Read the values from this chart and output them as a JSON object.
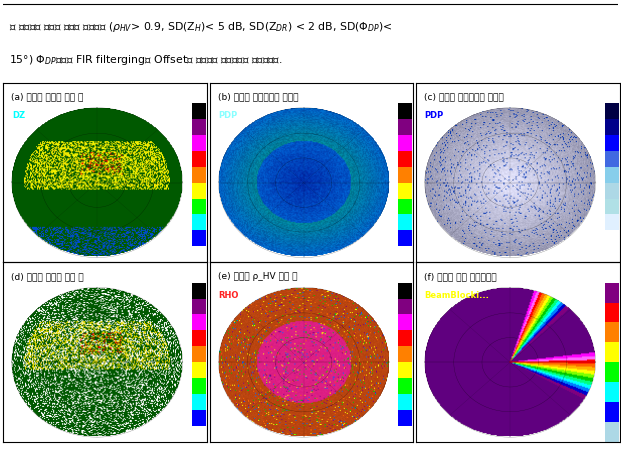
{
  "panel_labels": [
    "(a) 예봉산 반사도 보정 전",
    "(b) 예봉산 차등위상차 보정전",
    "(c) 예봉산 차등위상차 보정후",
    "(d) 예봉산 반사도 보정 후",
    "(e) 예봉산 ρ_HV 관측 예",
    "(f) 예봉산 차폐 시뮬레이션"
  ],
  "var_labels": [
    "DZ",
    "PDP",
    "PDP",
    "",
    "RHO",
    "BeamBlocki..."
  ],
  "var_label_colors": [
    "#00FFFF",
    "#88FFFF",
    "#0000FF",
    "",
    "#FF2222",
    "#FFFF00"
  ],
  "background": "#ffffff",
  "fig_width": 6.21,
  "fig_height": 4.52,
  "dpi": 100,
  "line1": "와 동일하게 비강수 신호를 제거하고 ($\\rho_{HV}$> 0.9, SD(Z$_H$)< 5 dB, SD(Z$_{DR}$) < 2 dB, SD($\\Phi_{DP}$)<",
  "line2": "15°) $\\Phi_{DP}$변수에 FIR filterging과 Offset을 적용하여 품질관리를 수행하였다."
}
